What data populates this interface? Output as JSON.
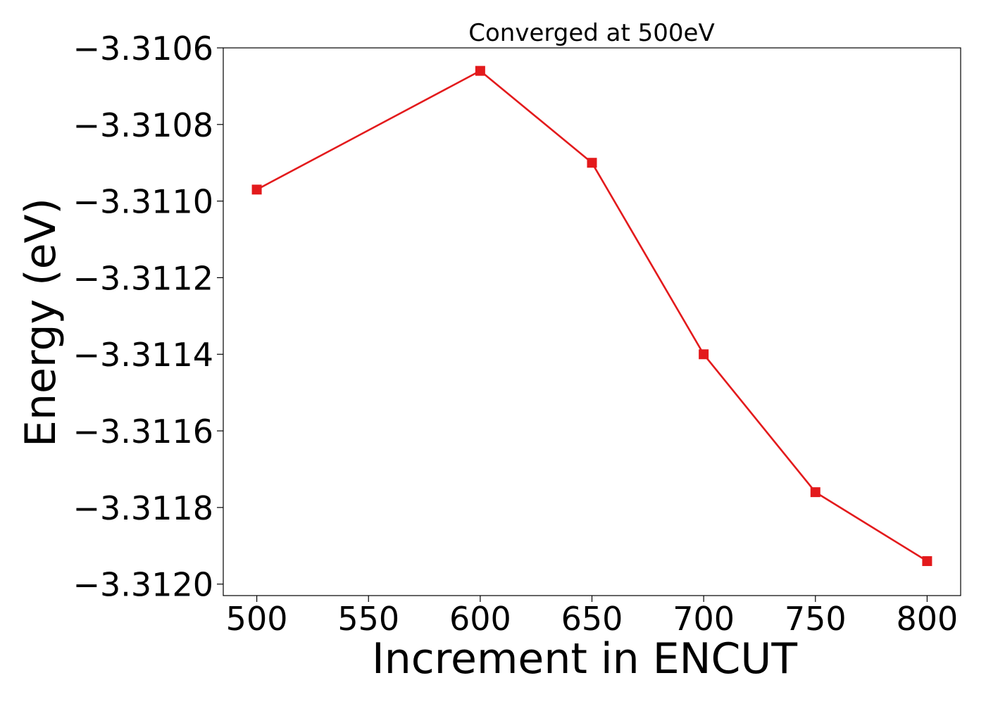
{
  "chart_data": {
    "type": "line",
    "title": "Converged at 500eV",
    "xlabel": "Increment in ENCUT",
    "ylabel": "Energy (eV)",
    "x": [
      500,
      600,
      650,
      700,
      750,
      800
    ],
    "series": [
      {
        "values": [
          -3.31097,
          -3.31066,
          -3.3109,
          -3.3114,
          -3.31176,
          -3.31194
        ],
        "color": "#e31a1c",
        "marker": "square"
      }
    ],
    "xlim": [
      485,
      815
    ],
    "ylim": [
      -3.31203,
      -3.3106
    ],
    "xticks": [
      500,
      550,
      600,
      650,
      700,
      750,
      800
    ],
    "xtick_labels": [
      "500",
      "550",
      "600",
      "650",
      "700",
      "750",
      "800"
    ],
    "yticks": [
      -3.3106,
      -3.3108,
      -3.311,
      -3.3112,
      -3.3114,
      -3.3116,
      -3.3118,
      -3.312
    ],
    "ytick_labels": [
      "−3.3106",
      "−3.3108",
      "−3.3110",
      "−3.3112",
      "−3.3114",
      "−3.3116",
      "−3.3118",
      "−3.3120"
    ],
    "grid": false,
    "legend": "none"
  }
}
